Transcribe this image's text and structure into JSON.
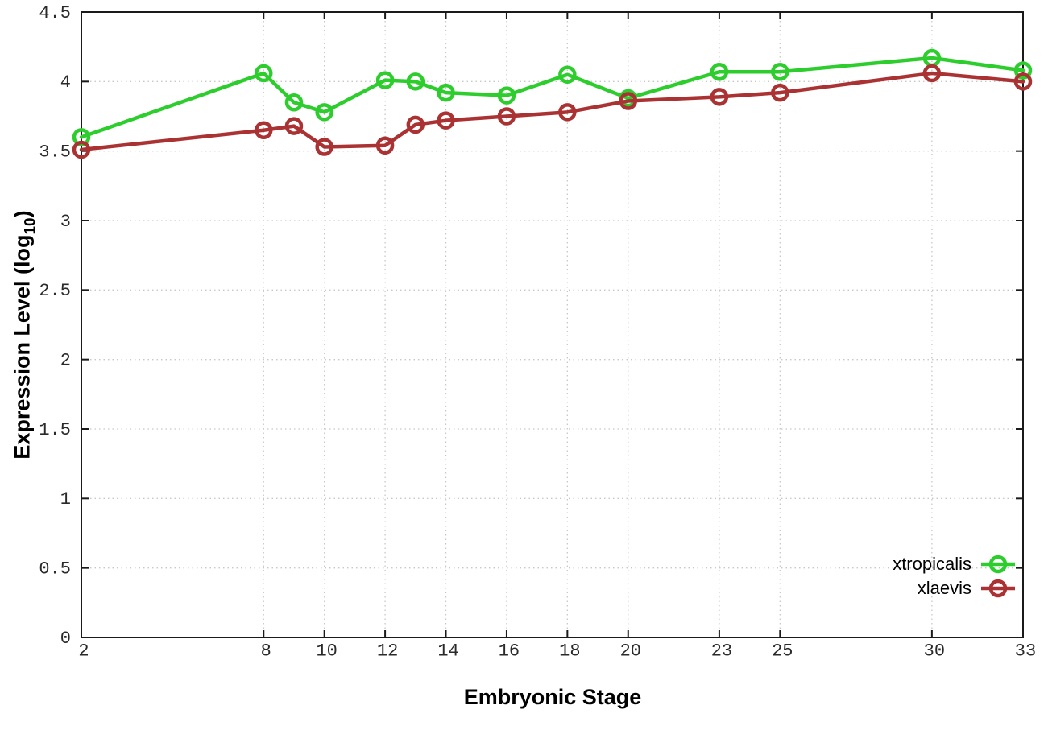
{
  "figure": {
    "background": "#ffffff",
    "xlabel": "Embryonic Stage",
    "ylabel_prefix": "Expression Level (log",
    "ylabel_sub": "10",
    "ylabel_suffix": ")"
  },
  "chart_data": {
    "type": "line",
    "title": "",
    "xlabel": "Embryonic Stage",
    "ylabel": "Expression Level (log10)",
    "x": [
      2,
      8,
      9,
      10,
      12,
      13,
      14,
      16,
      18,
      20,
      23,
      25,
      30,
      33
    ],
    "series": [
      {
        "name": "xtropicalis",
        "color": "#2dcd2d",
        "marker": "open-circle",
        "values": [
          3.6,
          4.06,
          3.85,
          3.78,
          4.01,
          4.0,
          3.92,
          3.9,
          4.05,
          3.88,
          4.07,
          4.07,
          4.17,
          4.08
        ]
      },
      {
        "name": "xlaevis",
        "color": "#ab3232",
        "marker": "open-circle",
        "values": [
          3.51,
          3.65,
          3.68,
          3.53,
          3.54,
          3.69,
          3.72,
          3.75,
          3.78,
          3.86,
          3.89,
          3.92,
          4.06,
          4.0
        ]
      }
    ],
    "xlim": [
      2,
      33
    ],
    "ylim": [
      0,
      4.5
    ],
    "x_ticks": [
      2,
      8,
      10,
      12,
      14,
      16,
      18,
      20,
      23,
      25,
      30,
      33
    ],
    "x_tick_labels": [
      "2",
      "8",
      "10",
      "12",
      "14",
      "16",
      "18",
      "20",
      "23",
      "25",
      "30",
      "33"
    ],
    "y_ticks": [
      0,
      0.5,
      1,
      1.5,
      2,
      2.5,
      3,
      3.5,
      4,
      4.5
    ],
    "y_tick_labels": [
      "0",
      "0.5",
      "1",
      "1.5",
      "2",
      "2.5",
      "3",
      "3.5",
      "4",
      "4.5"
    ],
    "grid": true,
    "grid_style": "dotted",
    "legend_position": "bottom-right"
  },
  "colors": {
    "grid": "#c8c8c8",
    "axis": "#1a1a1a",
    "tick_text": "#2a2a2a"
  }
}
